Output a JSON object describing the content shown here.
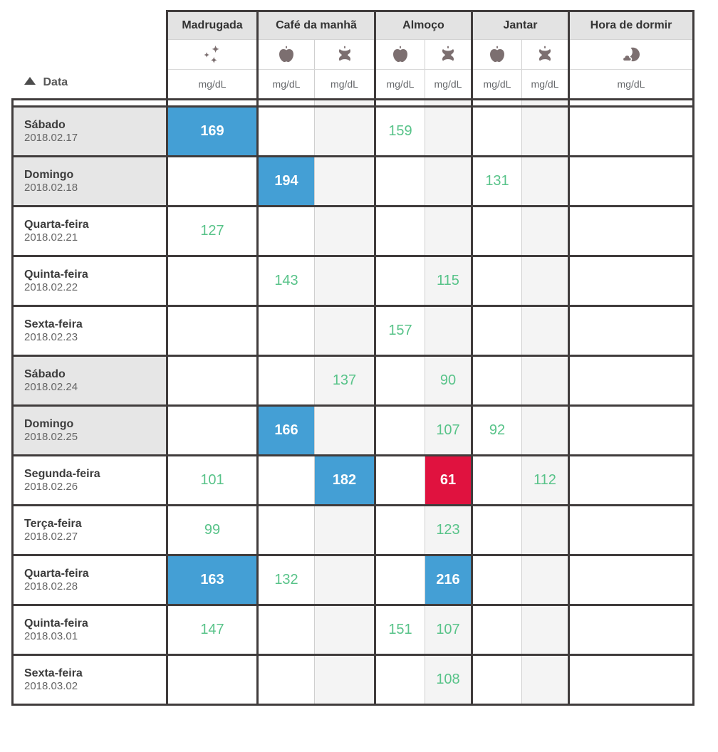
{
  "table": {
    "date_header": {
      "label": "Data",
      "sort_icon": "triangle-up-icon"
    },
    "unit": "mg/dL",
    "groups": [
      {
        "label": "Madrugada",
        "span": 1
      },
      {
        "label": "Café da manhã",
        "span": 2
      },
      {
        "label": "Almoço",
        "span": 2
      },
      {
        "label": "Jantar",
        "span": 2
      },
      {
        "label": "Hora de dormir",
        "span": 1
      }
    ],
    "columns": [
      {
        "id": "madrugada",
        "icon": "sparkles-icon",
        "shaded": false,
        "sep": "dark"
      },
      {
        "id": "cafe-da-manha-antes",
        "icon": "apple-icon",
        "shaded": false,
        "sep": "dark"
      },
      {
        "id": "cafe-da-manha-depois",
        "icon": "apple-core-icon",
        "shaded": true,
        "sep": "light"
      },
      {
        "id": "almoco-antes",
        "icon": "apple-icon",
        "shaded": false,
        "sep": "dark"
      },
      {
        "id": "almoco-depois",
        "icon": "apple-core-icon",
        "shaded": true,
        "sep": "light"
      },
      {
        "id": "jantar-antes",
        "icon": "apple-icon",
        "shaded": false,
        "sep": "dark"
      },
      {
        "id": "jantar-depois",
        "icon": "apple-core-icon",
        "shaded": true,
        "sep": "light"
      },
      {
        "id": "hora-de-dormir",
        "icon": "moon-icon",
        "shaded": false,
        "sep": "dark"
      }
    ],
    "rows": [
      {
        "day": "Sábado",
        "date": "2018.02.17",
        "weekend": true,
        "cells": [
          {
            "value": "169",
            "state": "high"
          },
          null,
          null,
          {
            "value": "159",
            "state": "normal"
          },
          null,
          null,
          null,
          null
        ]
      },
      {
        "day": "Domingo",
        "date": "2018.02.18",
        "weekend": true,
        "cells": [
          null,
          {
            "value": "194",
            "state": "high"
          },
          null,
          null,
          null,
          {
            "value": "131",
            "state": "normal"
          },
          null,
          null
        ]
      },
      {
        "day": "Quarta-feira",
        "date": "2018.02.21",
        "weekend": false,
        "cells": [
          {
            "value": "127",
            "state": "normal"
          },
          null,
          null,
          null,
          null,
          null,
          null,
          null
        ]
      },
      {
        "day": "Quinta-feira",
        "date": "2018.02.22",
        "weekend": false,
        "cells": [
          null,
          {
            "value": "143",
            "state": "normal"
          },
          null,
          null,
          {
            "value": "115",
            "state": "normal"
          },
          null,
          null,
          null
        ]
      },
      {
        "day": "Sexta-feira",
        "date": "2018.02.23",
        "weekend": false,
        "cells": [
          null,
          null,
          null,
          {
            "value": "157",
            "state": "normal"
          },
          null,
          null,
          null,
          null
        ]
      },
      {
        "day": "Sábado",
        "date": "2018.02.24",
        "weekend": true,
        "cells": [
          null,
          null,
          {
            "value": "137",
            "state": "normal"
          },
          null,
          {
            "value": "90",
            "state": "normal"
          },
          null,
          null,
          null
        ]
      },
      {
        "day": "Domingo",
        "date": "2018.02.25",
        "weekend": true,
        "cells": [
          null,
          {
            "value": "166",
            "state": "high"
          },
          null,
          null,
          {
            "value": "107",
            "state": "normal"
          },
          {
            "value": "92",
            "state": "normal"
          },
          null,
          null
        ]
      },
      {
        "day": "Segunda-feira",
        "date": "2018.02.26",
        "weekend": false,
        "cells": [
          {
            "value": "101",
            "state": "normal"
          },
          null,
          {
            "value": "182",
            "state": "high"
          },
          null,
          {
            "value": "61",
            "state": "low"
          },
          null,
          {
            "value": "112",
            "state": "normal"
          },
          null
        ]
      },
      {
        "day": "Terça-feira",
        "date": "2018.02.27",
        "weekend": false,
        "cells": [
          {
            "value": "99",
            "state": "normal"
          },
          null,
          null,
          null,
          {
            "value": "123",
            "state": "normal"
          },
          null,
          null,
          null
        ]
      },
      {
        "day": "Quarta-feira",
        "date": "2018.02.28",
        "weekend": false,
        "cells": [
          {
            "value": "163",
            "state": "high"
          },
          {
            "value": "132",
            "state": "normal"
          },
          null,
          null,
          {
            "value": "216",
            "state": "high"
          },
          null,
          null,
          null
        ]
      },
      {
        "day": "Quinta-feira",
        "date": "2018.03.01",
        "weekend": false,
        "cells": [
          {
            "value": "147",
            "state": "normal"
          },
          null,
          null,
          {
            "value": "151",
            "state": "normal"
          },
          {
            "value": "107",
            "state": "normal"
          },
          null,
          null,
          null
        ]
      },
      {
        "day": "Sexta-feira",
        "date": "2018.03.02",
        "weekend": false,
        "cells": [
          null,
          null,
          null,
          null,
          {
            "value": "108",
            "state": "normal"
          },
          null,
          null,
          null
        ]
      }
    ]
  },
  "colors": {
    "high_bg": "#449fd5",
    "low_bg": "#e0123f",
    "normal_text": "#58c389",
    "border_dark": "#403c3c",
    "group_header_bg": "#e3e3e3",
    "weekend_bg": "#e6e6e6",
    "shaded_column_bg": "#f4f4f4",
    "icon_color": "#7c6f70"
  }
}
